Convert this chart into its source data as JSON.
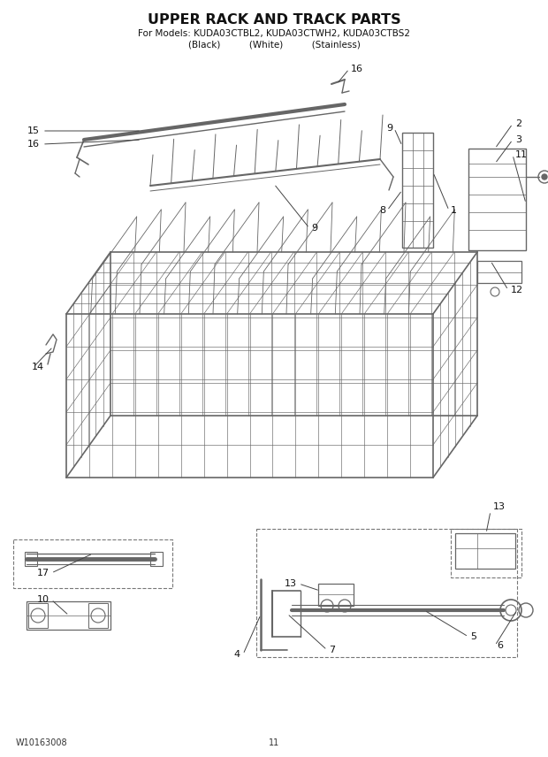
{
  "title": "UPPER RACK AND TRACK PARTS",
  "subtitle1": "For Models: KUDA03CTBL2, KUDA03CTWH2, KUDA03CTBS2",
  "subtitle2": "(Black)          (White)          (Stainless)",
  "footer_left": "W10163008",
  "footer_center": "11",
  "bg_color": "#ffffff",
  "title_fontsize": 11.5,
  "subtitle_fontsize": 7.5,
  "footer_fontsize": 7,
  "part_label_fontsize": 8,
  "lc": "#444444",
  "lw_main": 0.9,
  "lw_thin": 0.45
}
